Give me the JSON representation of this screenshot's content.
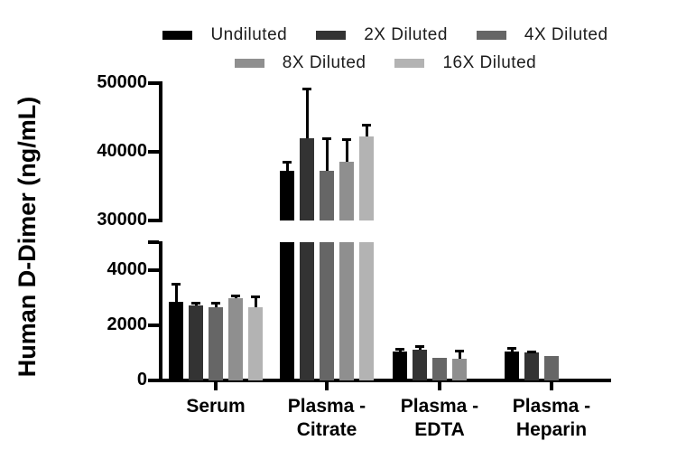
{
  "chart_data": {
    "type": "bar",
    "title": "",
    "ylabel": "Human D-Dimer (ng/mL)",
    "xlabel": "",
    "grid": false,
    "legend_position": "top",
    "axis_break": {
      "lower_range": [
        0,
        5000
      ],
      "upper_range": [
        30000,
        50000
      ]
    },
    "yticks_lower": [
      0,
      2000,
      4000
    ],
    "yticks_upper": [
      30000,
      40000,
      50000
    ],
    "categories": [
      "Serum",
      "Plasma - Citrate",
      "Plasma - EDTA",
      "Plasma - Heparin"
    ],
    "categories_lines": [
      [
        "Serum"
      ],
      [
        "Plasma -",
        "Citrate"
      ],
      [
        "Plasma -",
        "EDTA"
      ],
      [
        "Plasma -",
        "Heparin"
      ]
    ],
    "series": [
      {
        "name": "Undiluted",
        "color": "#000000",
        "values": [
          2850,
          37300,
          1050,
          1050
        ],
        "errors_plus": [
          650,
          1200,
          100,
          130
        ]
      },
      {
        "name": "2X Diluted",
        "color": "#333333",
        "values": [
          2700,
          42000,
          1100,
          1000
        ],
        "errors_plus": [
          100,
          7200,
          150,
          60
        ]
      },
      {
        "name": "4X Diluted",
        "color": "#666666",
        "values": [
          2650,
          37200,
          830,
          890
        ],
        "errors_plus": [
          150,
          4800,
          0,
          0
        ]
      },
      {
        "name": "8X Diluted",
        "color": "#8f8f8f",
        "values": [
          2980,
          38600,
          800,
          null
        ],
        "errors_plus": [
          100,
          3200,
          270,
          null
        ]
      },
      {
        "name": "16X Diluted",
        "color": "#b3b3b3",
        "values": [
          2650,
          42200,
          null,
          null
        ],
        "errors_plus": [
          400,
          1800,
          null,
          null
        ]
      }
    ]
  }
}
